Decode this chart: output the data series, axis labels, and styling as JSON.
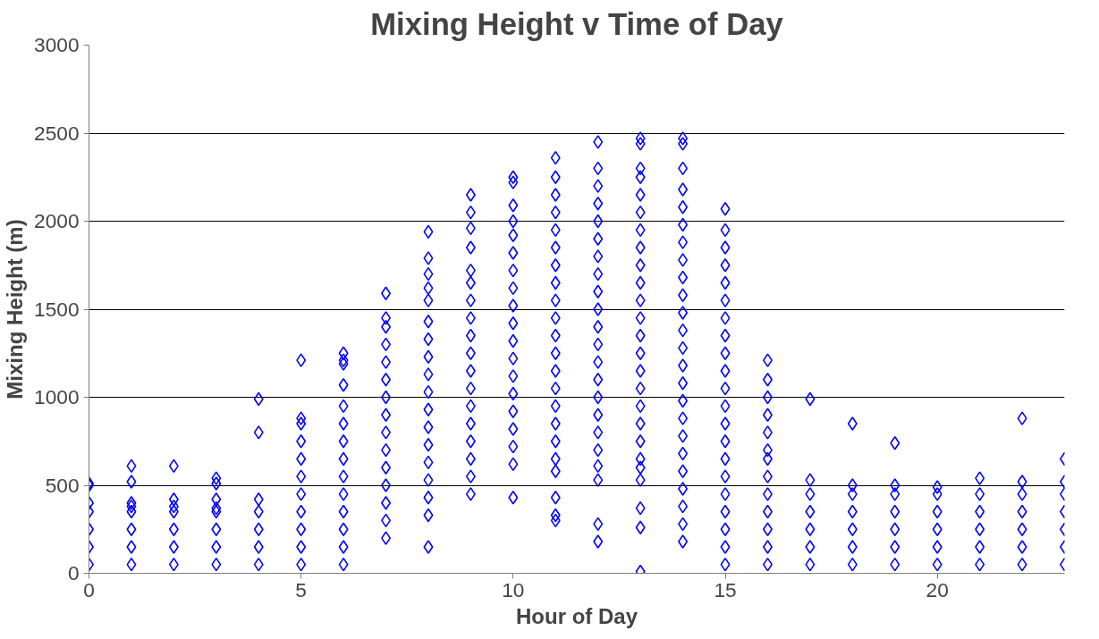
{
  "chart_data": {
    "type": "scatter",
    "title": "Mixing Height v Time of Day",
    "xlabel": "Hour of Day",
    "ylabel": "Mixing Height (m)",
    "xlim": [
      0,
      23
    ],
    "xticks": [
      0,
      5,
      10,
      15,
      20
    ],
    "ylim": [
      0,
      3000
    ],
    "yticks": [
      0,
      500,
      1000,
      1500,
      2000,
      2500,
      3000
    ],
    "grid": "y",
    "marker": "diamond",
    "series": [
      {
        "color": "#0000ff",
        "x": [
          0,
          0,
          0,
          0,
          0,
          0,
          0,
          1,
          1,
          1,
          1,
          1,
          1,
          1,
          1,
          2,
          2,
          2,
          2,
          2,
          2,
          2,
          3,
          3,
          3,
          3,
          3,
          3,
          3,
          3,
          4,
          4,
          4,
          4,
          4,
          4,
          4,
          5,
          5,
          5,
          5,
          5,
          5,
          5,
          5,
          5,
          5,
          5,
          6,
          6,
          6,
          6,
          6,
          6,
          6,
          6,
          6,
          6,
          6,
          6,
          6,
          6,
          7,
          7,
          7,
          7,
          7,
          7,
          7,
          7,
          7,
          7,
          7,
          7,
          7,
          7,
          7,
          8,
          8,
          8,
          8,
          8,
          8,
          8,
          8,
          8,
          8,
          8,
          8,
          8,
          8,
          8,
          8,
          8,
          8,
          9,
          9,
          9,
          9,
          9,
          9,
          9,
          9,
          9,
          9,
          9,
          9,
          9,
          9,
          9,
          9,
          9,
          9,
          10,
          10,
          10,
          10,
          10,
          10,
          10,
          10,
          10,
          10,
          10,
          10,
          10,
          10,
          10,
          10,
          10,
          10,
          10,
          11,
          11,
          11,
          11,
          11,
          11,
          11,
          11,
          11,
          11,
          11,
          11,
          11,
          11,
          11,
          11,
          11,
          11,
          11,
          11,
          11,
          11,
          12,
          12,
          12,
          12,
          12,
          12,
          12,
          12,
          12,
          12,
          12,
          12,
          12,
          12,
          12,
          12,
          12,
          12,
          12,
          12,
          12,
          12,
          13,
          13,
          13,
          13,
          13,
          13,
          13,
          13,
          13,
          13,
          13,
          13,
          13,
          13,
          13,
          13,
          13,
          13,
          13,
          13,
          13,
          13,
          13,
          13,
          13,
          14,
          14,
          14,
          14,
          14,
          14,
          14,
          14,
          14,
          14,
          14,
          14,
          14,
          14,
          14,
          14,
          14,
          14,
          14,
          14,
          14,
          14,
          14,
          14,
          15,
          15,
          15,
          15,
          15,
          15,
          15,
          15,
          15,
          15,
          15,
          15,
          15,
          15,
          15,
          15,
          15,
          15,
          15,
          15,
          15,
          16,
          16,
          16,
          16,
          16,
          16,
          16,
          16,
          16,
          16,
          16,
          16,
          16,
          17,
          17,
          17,
          17,
          17,
          17,
          17,
          18,
          18,
          18,
          18,
          18,
          18,
          18,
          19,
          19,
          19,
          19,
          19,
          19,
          19,
          20,
          20,
          20,
          20,
          20,
          20,
          21,
          21,
          21,
          21,
          21,
          21,
          22,
          22,
          22,
          22,
          22,
          22,
          22,
          23,
          23,
          23,
          23,
          23,
          23,
          23
        ],
        "values": [
          50,
          150,
          250,
          350,
          400,
          500,
          510,
          50,
          150,
          250,
          350,
          380,
          400,
          520,
          610,
          50,
          150,
          250,
          350,
          380,
          420,
          610,
          50,
          150,
          250,
          350,
          370,
          420,
          510,
          540,
          50,
          150,
          250,
          350,
          420,
          800,
          990,
          50,
          150,
          250,
          350,
          450,
          550,
          650,
          750,
          850,
          880,
          1210,
          50,
          150,
          250,
          350,
          450,
          550,
          650,
          750,
          850,
          950,
          1070,
          1190,
          1210,
          1250,
          200,
          300,
          400,
          500,
          600,
          700,
          800,
          900,
          1000,
          1100,
          1200,
          1300,
          1400,
          1450,
          1590,
          150,
          330,
          430,
          530,
          630,
          730,
          830,
          930,
          1030,
          1130,
          1230,
          1330,
          1430,
          1550,
          1620,
          1700,
          1790,
          1940,
          450,
          550,
          650,
          750,
          850,
          950,
          1050,
          1150,
          1250,
          1350,
          1450,
          1550,
          1650,
          1720,
          1850,
          1960,
          2050,
          2150,
          430,
          620,
          720,
          820,
          920,
          1020,
          1120,
          1220,
          1320,
          1420,
          1520,
          1620,
          1720,
          1820,
          1920,
          2000,
          2090,
          2220,
          2250,
          300,
          330,
          430,
          580,
          650,
          750,
          850,
          950,
          1050,
          1150,
          1250,
          1350,
          1450,
          1550,
          1650,
          1750,
          1850,
          1950,
          2050,
          2150,
          2250,
          2360,
          180,
          280,
          530,
          610,
          700,
          800,
          900,
          1000,
          1100,
          1200,
          1300,
          1400,
          1500,
          1600,
          1700,
          1800,
          1900,
          2000,
          2100,
          2200,
          2300,
          2450,
          10,
          260,
          370,
          530,
          600,
          650,
          750,
          850,
          950,
          1050,
          1150,
          1250,
          1350,
          1450,
          1550,
          1650,
          1750,
          1850,
          1950,
          2050,
          2150,
          2250,
          2300,
          2440,
          2470,
          180,
          280,
          380,
          480,
          580,
          680,
          780,
          880,
          980,
          1080,
          1180,
          1280,
          1380,
          1480,
          1580,
          1680,
          1780,
          1880,
          1980,
          2080,
          2180,
          2300,
          2440,
          2470,
          50,
          150,
          250,
          350,
          450,
          550,
          650,
          750,
          850,
          950,
          1050,
          1150,
          1250,
          1350,
          1450,
          1550,
          1650,
          1750,
          1850,
          1950,
          2070,
          50,
          150,
          250,
          350,
          450,
          550,
          650,
          700,
          800,
          900,
          1000,
          1100,
          1210,
          50,
          150,
          250,
          350,
          450,
          530,
          990,
          50,
          150,
          250,
          350,
          450,
          500,
          850,
          50,
          150,
          250,
          350,
          450,
          500,
          740,
          50,
          150,
          250,
          350,
          450,
          490,
          50,
          150,
          250,
          350,
          450,
          540,
          50,
          150,
          250,
          350,
          450,
          520,
          880,
          50,
          150,
          250,
          350,
          450,
          520,
          650
        ]
      }
    ]
  }
}
